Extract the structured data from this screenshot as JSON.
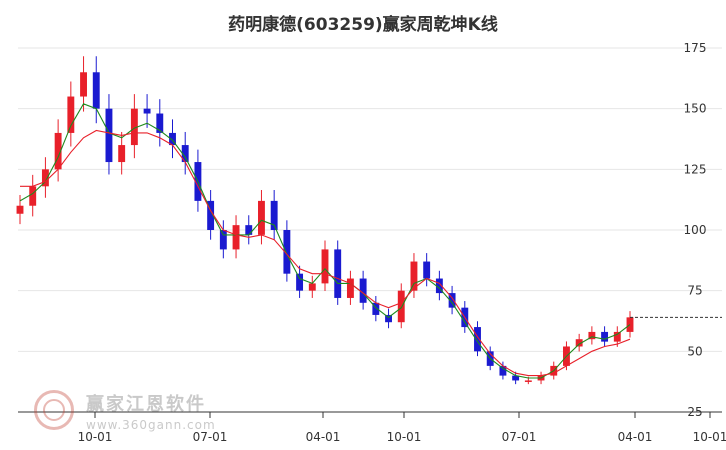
{
  "title": "药明康德(603259)赢家周乾坤K线",
  "watermark": {
    "name": "赢家江恩软件",
    "url": "www.360gann.com"
  },
  "colors": {
    "up": "#e8202a",
    "down": "#1a1ad0",
    "ma_short": "#1d8a1d",
    "ma_long": "#e8202a",
    "grid": "#e6e6e6",
    "axis": "#333333",
    "last_price_line": "#333333"
  },
  "chart_data": {
    "type": "candlestick",
    "title": "药明康德(603259)赢家周乾坤K线",
    "ylim": [
      25,
      175
    ],
    "y_ticks": [
      25,
      50,
      75,
      100,
      125,
      150,
      175
    ],
    "x_ticks": [
      "10-01",
      "07-01",
      "04-01",
      "10-01",
      "07-01",
      "04-01",
      "10-01"
    ],
    "grid": true,
    "last_price": 64,
    "series": [
      {
        "kind": "close",
        "values": [
          110,
          118,
          125,
          140,
          155,
          165,
          150,
          128,
          135,
          150,
          148,
          140,
          135,
          128,
          112,
          100,
          92,
          102,
          98,
          112,
          100,
          82,
          75,
          78,
          92,
          72,
          80,
          70,
          65,
          62,
          75,
          87,
          80,
          74,
          68,
          60,
          50,
          44,
          40,
          38,
          38,
          40,
          44,
          52,
          55,
          58,
          54,
          58,
          64
        ]
      },
      {
        "kind": "ma_short",
        "values": [
          112,
          115,
          120,
          130,
          143,
          152,
          150,
          140,
          138,
          142,
          144,
          141,
          137,
          130,
          120,
          108,
          98,
          98,
          98,
          104,
          102,
          90,
          80,
          78,
          84,
          78,
          78,
          74,
          68,
          64,
          68,
          78,
          80,
          76,
          70,
          62,
          54,
          47,
          43,
          40,
          39,
          39,
          42,
          48,
          53,
          56,
          55,
          57,
          61
        ]
      },
      {
        "kind": "ma_long",
        "values": [
          118,
          118,
          120,
          125,
          132,
          138,
          141,
          140,
          139,
          140,
          140,
          138,
          135,
          128,
          118,
          108,
          100,
          98,
          97,
          98,
          96,
          90,
          84,
          82,
          82,
          80,
          78,
          74,
          70,
          68,
          70,
          76,
          80,
          78,
          72,
          64,
          56,
          49,
          44,
          41,
          40,
          40,
          41,
          44,
          47,
          50,
          52,
          53,
          55
        ]
      }
    ]
  }
}
